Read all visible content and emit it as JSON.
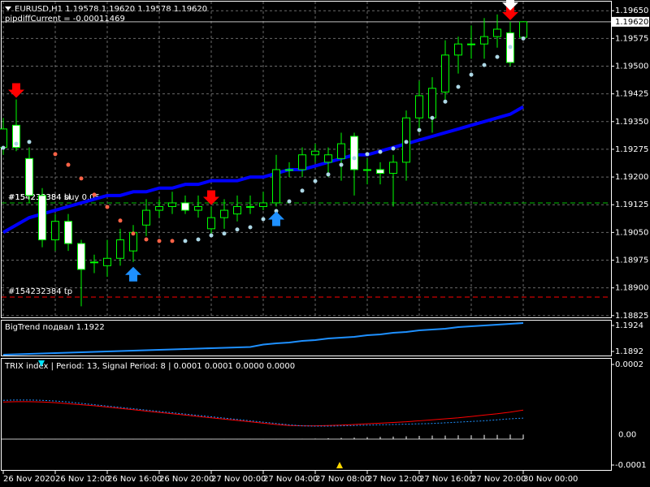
{
  "header": {
    "symbol_line": "EURUSD,H1  1.19578 1.19620 1.19578 1.19620",
    "indicator_line": "pipdiffCurrent = -0.00011469"
  },
  "chart_data": [
    {
      "type": "candlestick",
      "categories": [
        "26 Nov 2020",
        null,
        null,
        null,
        "26 Nov 12:00",
        null,
        null,
        null,
        "26 Nov 16:00",
        null,
        null,
        null,
        "26 Nov 20:00",
        null,
        null,
        null,
        "27 Nov 00:00",
        null,
        null,
        null,
        "27 Nov 04:00",
        null,
        null,
        null,
        "27 Nov 08:00",
        null,
        null,
        null,
        "27 Nov 12:00",
        null,
        null,
        null,
        "27 Nov 16:00",
        null,
        null,
        null,
        "27 Nov 20:00",
        null,
        null,
        null,
        "30 Nov 00:00"
      ],
      "open": [
        1.1928,
        1.1934,
        1.1925,
        1.1915,
        1.1903,
        1.1908,
        1.1902,
        1.1897,
        1.1896,
        1.1898,
        1.19,
        1.1907,
        1.1911,
        1.1912,
        1.1913,
        1.1911,
        1.1906,
        1.1909,
        1.191,
        1.1912,
        1.1912,
        1.1913,
        1.1922,
        1.1922,
        1.1926,
        1.1924,
        1.1925,
        1.1931,
        1.1922,
        1.1922,
        1.1921,
        1.1924,
        1.1936,
        1.1936,
        1.1943,
        1.1953,
        1.1956,
        1.1956,
        1.1958,
        1.1959,
        1.19578
      ],
      "high": [
        1.1936,
        1.1941,
        1.1928,
        1.1917,
        1.191,
        1.191,
        1.1903,
        1.1899,
        1.1903,
        1.1906,
        1.1907,
        1.1914,
        1.1914,
        1.1916,
        1.1915,
        1.1915,
        1.1912,
        1.1914,
        1.1915,
        1.1915,
        1.1916,
        1.1926,
        1.1924,
        1.1928,
        1.1929,
        1.1928,
        1.1932,
        1.1932,
        1.1925,
        1.1924,
        1.1926,
        1.1938,
        1.1946,
        1.1947,
        1.1957,
        1.1958,
        1.1961,
        1.1963,
        1.1964,
        1.1962,
        1.1962
      ],
      "low": [
        1.1926,
        1.1927,
        1.1913,
        1.1901,
        1.19,
        1.19,
        1.1885,
        1.1894,
        1.1893,
        1.1896,
        1.1897,
        1.1904,
        1.1909,
        1.191,
        1.191,
        1.1909,
        1.1904,
        1.1906,
        1.1908,
        1.191,
        1.1911,
        1.1912,
        1.192,
        1.192,
        1.1924,
        1.192,
        1.1919,
        1.1915,
        1.1918,
        1.1918,
        1.1912,
        1.1919,
        1.1932,
        1.1932,
        1.194,
        1.1948,
        1.1952,
        1.1952,
        1.1955,
        1.195,
        1.19578
      ],
      "close": [
        1.1933,
        1.1928,
        1.1915,
        1.1903,
        1.1908,
        1.1902,
        1.1895,
        1.1897,
        1.1898,
        1.1903,
        1.1905,
        1.1911,
        1.1912,
        1.1913,
        1.1911,
        1.1912,
        1.1909,
        1.1911,
        1.1912,
        1.1912,
        1.1913,
        1.1922,
        1.1922,
        1.1926,
        1.1927,
        1.1926,
        1.1929,
        1.1922,
        1.1922,
        1.1921,
        1.1924,
        1.1936,
        1.1942,
        1.1944,
        1.1953,
        1.1956,
        1.1956,
        1.1958,
        1.196,
        1.1951,
        1.1962
      ],
      "colors": {
        "up": "#000000",
        "down": "#ffffff",
        "wick": "#00ff00"
      },
      "ylim": [
        1.18818,
        1.19679
      ],
      "yticks": [
        {
          "value": 1.1965,
          "label": "1.19650"
        },
        1.19575,
        {
          "value": 1.195,
          "label": "1.19500"
        },
        1.19425,
        {
          "value": 1.1935,
          "label": "1.19350"
        },
        1.19275,
        {
          "value": 1.192,
          "label": "1.19200"
        },
        1.19125,
        {
          "value": 1.1905,
          "label": "1.19050"
        },
        1.18975,
        {
          "value": 1.189,
          "label": "1.18900"
        },
        1.18825
      ],
      "grid": true,
      "moving_average": {
        "color": "#0000ff",
        "values": [
          1.1905,
          1.1907,
          1.1909,
          1.191,
          1.1911,
          1.1912,
          1.1913,
          1.1914,
          1.1915,
          1.1915,
          1.1916,
          1.1916,
          1.1917,
          1.1917,
          1.1918,
          1.1918,
          1.1919,
          1.1919,
          1.1919,
          1.192,
          1.192,
          1.1921,
          1.1922,
          1.1922,
          1.1923,
          1.1924,
          1.1925,
          1.1926,
          1.1926,
          1.1927,
          1.1928,
          1.1929,
          1.193,
          1.1931,
          1.1932,
          1.1933,
          1.1934,
          1.1935,
          1.1936,
          1.1937,
          1.1939
        ]
      },
      "sar_above": {
        "color": "#ff6347",
        "values": [
          null,
          null,
          null,
          null,
          1.19262,
          1.19233,
          1.19196,
          1.19152,
          1.19119,
          1.19082,
          1.19047,
          1.19031,
          1.19027,
          1.19027,
          null,
          null,
          null,
          null,
          null,
          null,
          null,
          null,
          null,
          null,
          null,
          null,
          null,
          null,
          null,
          null,
          null,
          null,
          null,
          null,
          null,
          null,
          null,
          null,
          null,
          null,
          null
        ]
      },
      "sar_below": {
        "color": "#add8e6",
        "values": [
          1.19279,
          1.1929,
          1.19295,
          null,
          null,
          null,
          null,
          null,
          null,
          null,
          null,
          null,
          null,
          null,
          1.19027,
          1.19031,
          1.19042,
          1.19047,
          1.19058,
          1.19064,
          1.19086,
          1.19108,
          1.19134,
          1.19163,
          1.19189,
          1.19207,
          1.19233,
          1.19251,
          1.19262,
          1.19268,
          1.19277,
          1.19295,
          1.19327,
          1.1936,
          1.19404,
          1.19444,
          1.19477,
          1.19503,
          1.19525,
          1.19552,
          1.19575
        ]
      },
      "sell_signals": [
        1,
        16,
        39
      ],
      "buy_signals": [
        10,
        21
      ],
      "sell_color": "#ff0000",
      "buy_color": "#1e90ff",
      "exit_color": "#ffffff",
      "exit_signals": [
        39
      ],
      "order_lines": [
        {
          "price": 1.1913,
          "color": "#00c000",
          "labels": [
            "#154232384 buy 0.05",
            "#154232384 sl"
          ]
        },
        {
          "price": 1.18875,
          "color": "#ff0000",
          "labels": [
            "#154232384 tp"
          ]
        }
      ],
      "current_price": {
        "value": 1.1962,
        "label": "1.19620"
      }
    },
    {
      "type": "line",
      "title": "BigTrend подвал 1.1922",
      "color": "#1e90ff",
      "values": [
        1.1888,
        1.18885,
        1.1889,
        1.18895,
        1.189,
        1.18905,
        1.1891,
        1.18915,
        1.1892,
        1.18925,
        1.1893,
        1.18935,
        1.1894,
        1.18945,
        1.1895,
        1.18955,
        1.1896,
        1.18965,
        1.1897,
        1.18975,
        1.19005,
        1.1902,
        1.1903,
        1.1905,
        1.1906,
        1.1908,
        1.1909,
        1.191,
        1.1912,
        1.1913,
        1.1915,
        1.1916,
        1.1918,
        1.1919,
        1.192,
        1.1922,
        1.1923,
        1.1924,
        1.1925,
        1.1926,
        1.1927
      ],
      "ylim": [
        1.1886,
        1.193
      ],
      "yticks": [
        1.1924,
        1.1892
      ]
    },
    {
      "type": "trix",
      "title": "TRIX index | Period: 13, Signal Period: 8 | 0.0001 0.0001 0.0000 0.0000",
      "series": [
        {
          "color": "#ff0000",
          "dashed": false,
          "values": [
            8.8e-05,
            8.9e-05,
            8.9e-05,
            8.8e-05,
            8.6e-05,
            8.3e-05,
            8e-05,
            7.7e-05,
            7.3e-05,
            6.9e-05,
            6.5e-05,
            6.1e-05,
            5.7e-05,
            5.3e-05,
            4.9e-05,
            4.5e-05,
            4.1e-05,
            3.7e-05,
            3.3e-05,
            2.9e-05,
            2.5e-05,
            2.1e-05,
            1.8e-05,
            1.7e-05,
            1.7e-05,
            1.8e-05,
            1.9e-05,
            2.1e-05,
            2.3e-05,
            2.5e-05,
            2.7e-05,
            2.9e-05,
            3.2e-05,
            3.5e-05,
            3.8e-05,
            4.1e-05,
            4.5e-05,
            4.9e-05,
            5.3e-05,
            5.8e-05,
            6.4e-05
          ]
        },
        {
          "color": "#1e90ff",
          "dashed": true,
          "values": [
            9.3e-05,
            9.4e-05,
            9.4e-05,
            9.3e-05,
            9.1e-05,
            8.8e-05,
            8.4e-05,
            8e-05,
            7.6e-05,
            7.2e-05,
            6.8e-05,
            6.4e-05,
            6e-05,
            5.6e-05,
            5.2e-05,
            4.8e-05,
            4.4e-05,
            4e-05,
            3.6e-05,
            3.2e-05,
            2.8e-05,
            2.4e-05,
            2e-05,
            1.7e-05,
            1.6e-05,
            1.6e-05,
            1.7e-05,
            1.8e-05,
            1.9e-05,
            2e-05,
            2.1e-05,
            2.2e-05,
            2.3e-05,
            2.4e-05,
            2.6e-05,
            2.8e-05,
            3e-05,
            3.2e-05,
            3.5e-05,
            3.8e-05,
            4e-05
          ]
        }
      ],
      "histogram": {
        "color": "#ffffff",
        "values": [
          -2.3e-05,
          -2.3e-05,
          -2.3e-05,
          -2.3e-05,
          -2.3e-05,
          -2.3e-05,
          -2.3e-05,
          -2.3e-05,
          -2.3e-05,
          -2.3e-05,
          -2.3e-05,
          -2.3e-05,
          -2.3e-05,
          -2.3e-05,
          -2.3e-05,
          -2.3e-05,
          -2.3e-05,
          -2.3e-05,
          -2.3e-05,
          -2.3e-05,
          -2.3e-05,
          -2.3e-05,
          -2.3e-05,
          -2.2e-05,
          -2.1e-05,
          -2e-05,
          -1.9e-05,
          -1.8e-05,
          -1.7e-05,
          -1.6e-05,
          -1.5e-05,
          -1.4e-05,
          -1.3e-05,
          -1.2e-05,
          -1.2e-05,
          -1.1e-05,
          -1.1e-05,
          -1e-05,
          -1e-05,
          -9e-06,
          -9e-06
        ],
        "last_label": "0.00"
      },
      "ylim": [
        -0.000117,
        0.000217
      ],
      "yticks": [
        0.0002,
        -0.0001
      ]
    }
  ]
}
